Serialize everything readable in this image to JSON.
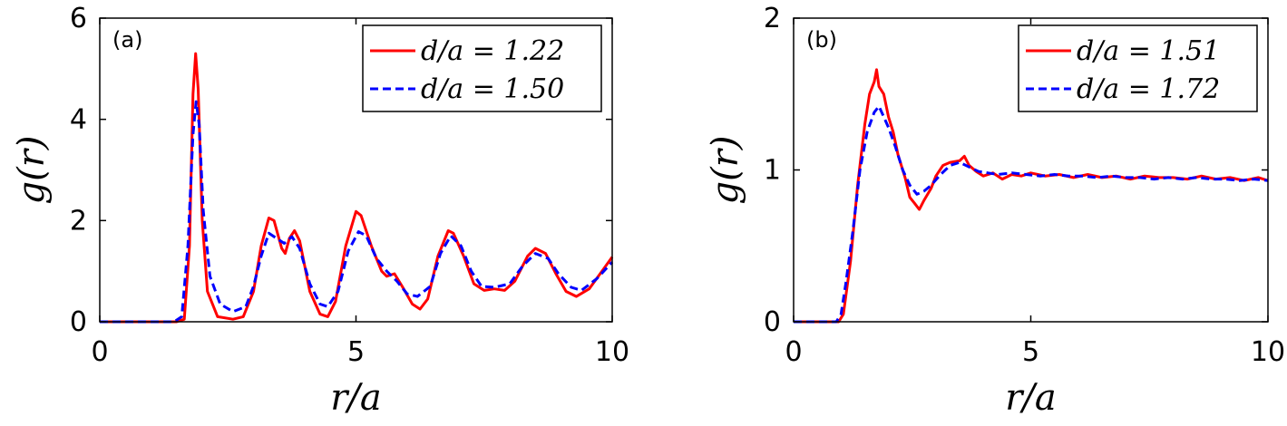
{
  "chart_data": [
    {
      "type": "line",
      "panel_label": "(a)",
      "xlabel": "r/a",
      "ylabel": "g(r)",
      "xlim": [
        0,
        10
      ],
      "ylim": [
        0,
        6
      ],
      "xticks": [
        "0",
        "5",
        "10"
      ],
      "yticks": [
        "0",
        "2",
        "4",
        "6"
      ],
      "grid": false,
      "legend_position": "top-right",
      "series": [
        {
          "name": "d/a = 1.22",
          "color": "#ff0000",
          "style": "solid",
          "points": [
            [
              0,
              0
            ],
            [
              1.5,
              0
            ],
            [
              1.65,
              0.05
            ],
            [
              1.75,
              1.5
            ],
            [
              1.82,
              4.5
            ],
            [
              1.87,
              5.3
            ],
            [
              1.92,
              4.6
            ],
            [
              2.0,
              2.0
            ],
            [
              2.1,
              0.6
            ],
            [
              2.3,
              0.1
            ],
            [
              2.6,
              0.05
            ],
            [
              2.8,
              0.1
            ],
            [
              3.0,
              0.6
            ],
            [
              3.15,
              1.5
            ],
            [
              3.3,
              2.05
            ],
            [
              3.4,
              2.0
            ],
            [
              3.55,
              1.45
            ],
            [
              3.62,
              1.35
            ],
            [
              3.7,
              1.65
            ],
            [
              3.8,
              1.8
            ],
            [
              3.9,
              1.6
            ],
            [
              4.1,
              0.6
            ],
            [
              4.3,
              0.15
            ],
            [
              4.45,
              0.1
            ],
            [
              4.6,
              0.4
            ],
            [
              4.8,
              1.5
            ],
            [
              5.0,
              2.18
            ],
            [
              5.1,
              2.1
            ],
            [
              5.3,
              1.5
            ],
            [
              5.5,
              1.0
            ],
            [
              5.6,
              0.9
            ],
            [
              5.75,
              0.95
            ],
            [
              5.9,
              0.7
            ],
            [
              6.1,
              0.35
            ],
            [
              6.25,
              0.25
            ],
            [
              6.4,
              0.45
            ],
            [
              6.6,
              1.3
            ],
            [
              6.8,
              1.8
            ],
            [
              6.9,
              1.75
            ],
            [
              7.1,
              1.3
            ],
            [
              7.3,
              0.75
            ],
            [
              7.5,
              0.62
            ],
            [
              7.7,
              0.65
            ],
            [
              7.9,
              0.62
            ],
            [
              8.1,
              0.8
            ],
            [
              8.35,
              1.3
            ],
            [
              8.5,
              1.45
            ],
            [
              8.7,
              1.35
            ],
            [
              8.9,
              0.95
            ],
            [
              9.1,
              0.6
            ],
            [
              9.3,
              0.5
            ],
            [
              9.55,
              0.65
            ],
            [
              9.8,
              1.0
            ],
            [
              10.0,
              1.28
            ]
          ]
        },
        {
          "name": "d/a = 1.50",
          "color": "#0000ff",
          "style": "dashed",
          "points": [
            [
              0,
              0
            ],
            [
              1.45,
              0
            ],
            [
              1.6,
              0.1
            ],
            [
              1.72,
              1.5
            ],
            [
              1.82,
              3.7
            ],
            [
              1.88,
              4.35
            ],
            [
              1.94,
              3.9
            ],
            [
              2.02,
              2.2
            ],
            [
              2.15,
              0.9
            ],
            [
              2.35,
              0.35
            ],
            [
              2.6,
              0.2
            ],
            [
              2.85,
              0.3
            ],
            [
              3.0,
              0.7
            ],
            [
              3.15,
              1.3
            ],
            [
              3.3,
              1.75
            ],
            [
              3.45,
              1.65
            ],
            [
              3.6,
              1.55
            ],
            [
              3.75,
              1.68
            ],
            [
              3.9,
              1.45
            ],
            [
              4.1,
              0.75
            ],
            [
              4.3,
              0.35
            ],
            [
              4.45,
              0.3
            ],
            [
              4.65,
              0.6
            ],
            [
              4.85,
              1.4
            ],
            [
              5.05,
              1.78
            ],
            [
              5.2,
              1.7
            ],
            [
              5.4,
              1.25
            ],
            [
              5.6,
              1.0
            ],
            [
              5.8,
              0.8
            ],
            [
              6.0,
              0.55
            ],
            [
              6.2,
              0.5
            ],
            [
              6.45,
              0.7
            ],
            [
              6.65,
              1.35
            ],
            [
              6.85,
              1.7
            ],
            [
              7.05,
              1.5
            ],
            [
              7.25,
              1.0
            ],
            [
              7.45,
              0.7
            ],
            [
              7.7,
              0.68
            ],
            [
              8.0,
              0.75
            ],
            [
              8.25,
              1.1
            ],
            [
              8.5,
              1.35
            ],
            [
              8.75,
              1.25
            ],
            [
              8.95,
              0.95
            ],
            [
              9.2,
              0.68
            ],
            [
              9.4,
              0.62
            ],
            [
              9.7,
              0.85
            ],
            [
              10.0,
              1.18
            ]
          ]
        }
      ]
    },
    {
      "type": "line",
      "panel_label": "(b)",
      "xlabel": "r/a",
      "ylabel": "g(r)",
      "xlim": [
        0,
        10
      ],
      "ylim": [
        0,
        2
      ],
      "xticks": [
        "0",
        "5",
        "10"
      ],
      "yticks": [
        "0",
        "1",
        "2"
      ],
      "grid": false,
      "legend_position": "top-right",
      "series": [
        {
          "name": "d/a = 1.51",
          "color": "#ff0000",
          "style": "solid",
          "points": [
            [
              0,
              0
            ],
            [
              0.95,
              0
            ],
            [
              1.05,
              0.05
            ],
            [
              1.2,
              0.4
            ],
            [
              1.35,
              0.9
            ],
            [
              1.5,
              1.3
            ],
            [
              1.6,
              1.5
            ],
            [
              1.7,
              1.58
            ],
            [
              1.75,
              1.66
            ],
            [
              1.8,
              1.55
            ],
            [
              1.9,
              1.5
            ],
            [
              2.0,
              1.35
            ],
            [
              2.1,
              1.25
            ],
            [
              2.2,
              1.1
            ],
            [
              2.35,
              0.95
            ],
            [
              2.45,
              0.82
            ],
            [
              2.55,
              0.78
            ],
            [
              2.65,
              0.74
            ],
            [
              2.75,
              0.8
            ],
            [
              2.9,
              0.88
            ],
            [
              3.0,
              0.96
            ],
            [
              3.15,
              1.03
            ],
            [
              3.3,
              1.05
            ],
            [
              3.5,
              1.06
            ],
            [
              3.6,
              1.09
            ],
            [
              3.7,
              1.03
            ],
            [
              3.85,
              0.99
            ],
            [
              4.0,
              0.96
            ],
            [
              4.2,
              0.98
            ],
            [
              4.4,
              0.94
            ],
            [
              4.6,
              0.97
            ],
            [
              4.8,
              0.96
            ],
            [
              5.0,
              0.98
            ],
            [
              5.3,
              0.96
            ],
            [
              5.6,
              0.97
            ],
            [
              5.9,
              0.95
            ],
            [
              6.2,
              0.97
            ],
            [
              6.5,
              0.95
            ],
            [
              6.8,
              0.96
            ],
            [
              7.1,
              0.94
            ],
            [
              7.4,
              0.96
            ],
            [
              7.7,
              0.95
            ],
            [
              8.0,
              0.95
            ],
            [
              8.3,
              0.94
            ],
            [
              8.6,
              0.96
            ],
            [
              8.9,
              0.94
            ],
            [
              9.2,
              0.95
            ],
            [
              9.5,
              0.93
            ],
            [
              9.8,
              0.95
            ],
            [
              10.0,
              0.93
            ]
          ]
        },
        {
          "name": "d/a = 1.72",
          "color": "#0000ff",
          "style": "dashed",
          "points": [
            [
              0,
              0
            ],
            [
              0.9,
              0
            ],
            [
              1.0,
              0.05
            ],
            [
              1.1,
              0.25
            ],
            [
              1.25,
              0.6
            ],
            [
              1.4,
              1.0
            ],
            [
              1.55,
              1.25
            ],
            [
              1.7,
              1.38
            ],
            [
              1.8,
              1.42
            ],
            [
              1.9,
              1.35
            ],
            [
              2.0,
              1.28
            ],
            [
              2.15,
              1.15
            ],
            [
              2.3,
              1.0
            ],
            [
              2.45,
              0.9
            ],
            [
              2.6,
              0.84
            ],
            [
              2.75,
              0.86
            ],
            [
              2.9,
              0.9
            ],
            [
              3.1,
              0.97
            ],
            [
              3.3,
              1.03
            ],
            [
              3.5,
              1.05
            ],
            [
              3.7,
              1.02
            ],
            [
              3.9,
              0.99
            ],
            [
              4.1,
              0.98
            ],
            [
              4.3,
              0.97
            ],
            [
              4.6,
              0.98
            ],
            [
              4.9,
              0.97
            ],
            [
              5.2,
              0.96
            ],
            [
              5.5,
              0.97
            ],
            [
              5.8,
              0.96
            ],
            [
              6.1,
              0.96
            ],
            [
              6.4,
              0.95
            ],
            [
              6.7,
              0.96
            ],
            [
              7.0,
              0.95
            ],
            [
              7.3,
              0.95
            ],
            [
              7.6,
              0.94
            ],
            [
              7.9,
              0.95
            ],
            [
              8.2,
              0.94
            ],
            [
              8.5,
              0.95
            ],
            [
              8.8,
              0.94
            ],
            [
              9.1,
              0.94
            ],
            [
              9.4,
              0.93
            ],
            [
              9.7,
              0.94
            ],
            [
              10.0,
              0.93
            ]
          ]
        }
      ]
    }
  ]
}
